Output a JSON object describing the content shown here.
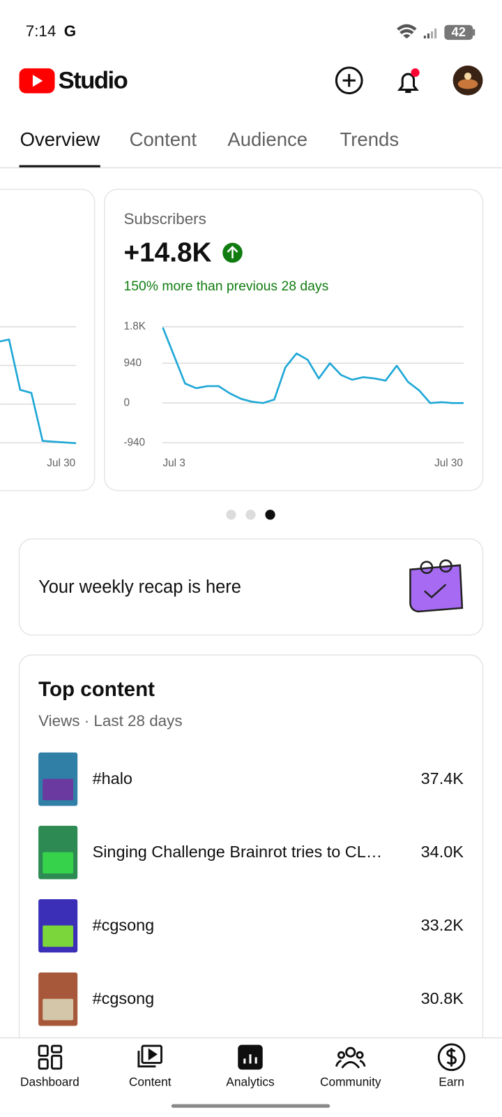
{
  "status": {
    "time": "7:14",
    "carrier": "G",
    "battery": "42"
  },
  "header": {
    "brand": "Studio"
  },
  "tabs": [
    "Overview",
    "Content",
    "Audience",
    "Trends"
  ],
  "chart_data": [
    {
      "type": "line",
      "categories": [
        null,
        null,
        null,
        null,
        null,
        null,
        null,
        "Jul 30"
      ],
      "values": [
        1.61,
        1.67,
        0.37,
        0.29,
        -0.95,
        -0.97,
        -0.99,
        -1.01
      ],
      "color": "#1ea7d6",
      "ylim": [
        -1,
        2
      ],
      "gridlines": [
        -1,
        0,
        1,
        2
      ],
      "grid": true
    },
    {
      "type": "line",
      "title": "Subscribers",
      "headline": "+14.8K",
      "change": "150% more than previous 28 days",
      "categories": [
        "Jul 3",
        null,
        null,
        null,
        null,
        null,
        null,
        null,
        null,
        null,
        null,
        null,
        null,
        null,
        null,
        null,
        null,
        null,
        null,
        null,
        null,
        null,
        null,
        null,
        null,
        null,
        null,
        "Jul 30"
      ],
      "values": [
        1780,
        1120,
        460,
        350,
        400,
        400,
        230,
        100,
        30,
        0,
        80,
        840,
        1170,
        1020,
        580,
        940,
        660,
        550,
        610,
        580,
        530,
        880,
        500,
        300,
        0,
        20,
        0,
        0
      ],
      "color": "#1ea7d6",
      "ylim": [
        -940,
        1800
      ],
      "yticks": [
        {
          "value": 1800,
          "label": "1.8K"
        },
        940,
        0,
        -940
      ],
      "grid": true
    }
  ],
  "pager": {
    "count": 3,
    "active": 2
  },
  "recap": {
    "text": "Your weekly recap is here"
  },
  "top_content": {
    "title": "Top content",
    "subtitle": "Views · Last 28 days",
    "items": [
      {
        "title": "#halo",
        "views": "37.4K"
      },
      {
        "title": "Singing Challenge Brainrot tries to CL…",
        "views": "34.0K"
      },
      {
        "title": "#cgsong",
        "views": "33.2K"
      },
      {
        "title": "#cgsong",
        "views": "30.8K"
      }
    ]
  },
  "nav": [
    "Dashboard",
    "Content",
    "Analytics",
    "Community",
    "Earn"
  ]
}
